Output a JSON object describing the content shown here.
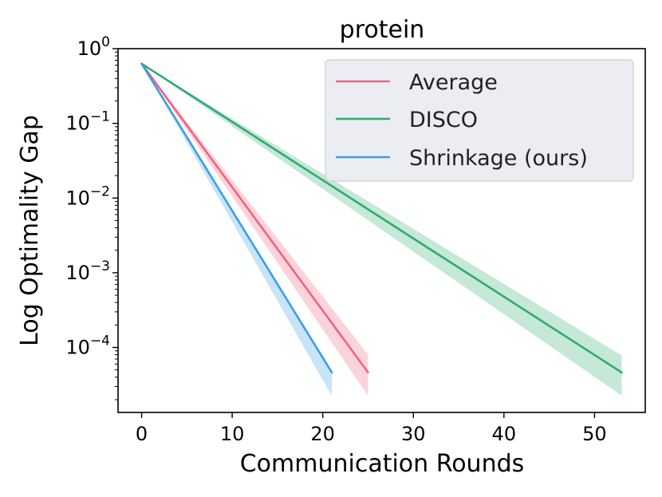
{
  "chart_data": {
    "type": "line",
    "title": "protein",
    "xlabel": "Communication Rounds",
    "ylabel": "Log Optimality Gap",
    "yscale": "log",
    "xlim": [
      -2.6,
      55.6
    ],
    "ylim_exp": [
      -4.87,
      0.0
    ],
    "xticks": [
      0,
      10,
      20,
      30,
      40,
      50
    ],
    "xtick_labels": [
      "0",
      "10",
      "20",
      "30",
      "40",
      "50"
    ],
    "yticks_exp": [
      0,
      -1,
      -2,
      -3,
      -4
    ],
    "ytick_base": "10",
    "ytick_exps": [
      "0",
      "−1",
      "−2",
      "−3",
      "−4"
    ],
    "legend_position": "upper right",
    "series": [
      {
        "name": "Average",
        "color": "#f0647e",
        "x_start": 0,
        "x_end": 25,
        "y_start": 0.63,
        "y_end": 4.63e-05,
        "band_upper_end": 8e-05,
        "band_lower_end": 2.25e-05
      },
      {
        "name": "DISCO",
        "color": "#2fab6e",
        "x_start": 0,
        "x_end": 53,
        "y_start": 0.63,
        "y_end": 4.63e-05,
        "band_upper_end": 7.8e-05,
        "band_lower_end": 2.27e-05
      },
      {
        "name": "Shrinkage (ours)",
        "color": "#3a9fe6",
        "x_start": 0,
        "x_end": 21,
        "y_start": 0.63,
        "y_end": 4.63e-05,
        "band_upper_end": 4.8e-05,
        "band_lower_end": 2.25e-05
      }
    ]
  }
}
